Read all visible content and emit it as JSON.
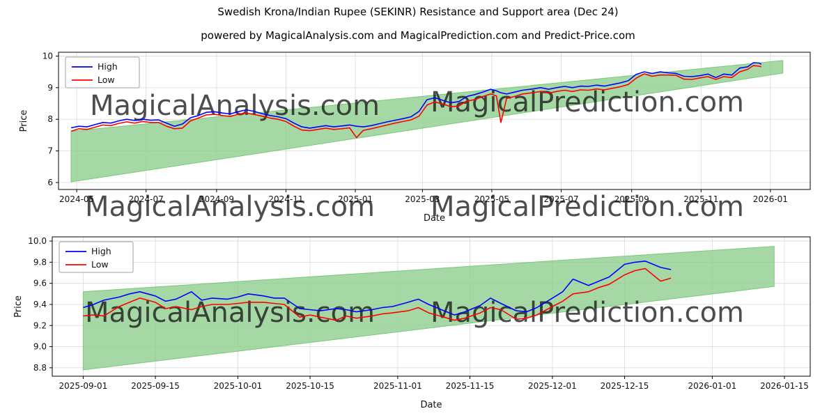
{
  "figure": {
    "title": "Swedish Krona/Indian Rupee (SEKINR) Resistance and Support area (Dec 24)",
    "subtitle": "powered by MagicalAnalysis.com and MagicalPrediction.com and Predict-Price.com"
  },
  "watermarks": [
    "MagicalAnalysis.com",
    "MagicalPrediction.com"
  ],
  "colors": {
    "high_line": "#0000ff",
    "low_line": "#ff0000",
    "band_fill": "#8fce8f",
    "band_edge": "#7ac87a",
    "grid": "#d9d9d9",
    "watermark": "#c9c9c9",
    "frame": "#000000"
  },
  "chart_data": [
    {
      "type": "line",
      "xlabel": "Date",
      "ylabel": "Price",
      "grid": true,
      "legend_position": "upper left",
      "xlim": [
        "2024-04-15",
        "2026-02-05"
      ],
      "ylim": [
        5.78,
        10.12
      ],
      "x_ticks": [
        {
          "d": "2024-05-01",
          "label": "2024-05"
        },
        {
          "d": "2024-07-01",
          "label": "2024-07"
        },
        {
          "d": "2024-09-01",
          "label": "2024-09"
        },
        {
          "d": "2024-11-01",
          "label": "2024-11"
        },
        {
          "d": "2025-01-01",
          "label": "2025-01"
        },
        {
          "d": "2025-03-01",
          "label": "2025-03"
        },
        {
          "d": "2025-05-01",
          "label": "2025-05"
        },
        {
          "d": "2025-07-01",
          "label": "2025-07"
        },
        {
          "d": "2025-09-01",
          "label": "2025-09"
        },
        {
          "d": "2025-11-01",
          "label": "2025-11"
        },
        {
          "d": "2026-01-01",
          "label": "2026-01"
        }
      ],
      "y_ticks": [
        {
          "v": 6,
          "label": "6"
        },
        {
          "v": 7,
          "label": "7"
        },
        {
          "v": 8,
          "label": "8"
        },
        {
          "v": 9,
          "label": "9"
        },
        {
          "v": 10,
          "label": "10"
        }
      ],
      "series": [
        {
          "name": "High",
          "color": "#0000ff"
        },
        {
          "name": "Low",
          "color": "#ff0000"
        }
      ],
      "band": {
        "x": [
          "2024-04-26",
          "2026-01-12"
        ],
        "lower": [
          6.02,
          9.46
        ],
        "upper": [
          7.62,
          9.86
        ]
      },
      "points": [
        [
          "2024-04-26",
          7.73,
          7.62
        ],
        [
          "2024-05-03",
          7.78,
          7.7
        ],
        [
          "2024-05-10",
          7.76,
          7.68
        ],
        [
          "2024-05-17",
          7.83,
          7.75
        ],
        [
          "2024-05-24",
          7.9,
          7.82
        ],
        [
          "2024-05-31",
          7.88,
          7.8
        ],
        [
          "2024-06-07",
          7.95,
          7.87
        ],
        [
          "2024-06-14",
          8.0,
          7.92
        ],
        [
          "2024-06-21",
          7.96,
          7.88
        ],
        [
          "2024-06-28",
          8.0,
          7.93
        ],
        [
          "2024-07-05",
          7.97,
          7.9
        ],
        [
          "2024-07-12",
          7.98,
          7.9
        ],
        [
          "2024-07-19",
          7.88,
          7.78
        ],
        [
          "2024-07-26",
          7.78,
          7.7
        ],
        [
          "2024-08-02",
          7.85,
          7.72
        ],
        [
          "2024-08-09",
          8.05,
          7.95
        ],
        [
          "2024-08-16",
          8.12,
          8.04
        ],
        [
          "2024-08-23",
          8.22,
          8.14
        ],
        [
          "2024-08-30",
          8.24,
          8.16
        ],
        [
          "2024-09-06",
          8.2,
          8.12
        ],
        [
          "2024-09-13",
          8.17,
          8.09
        ],
        [
          "2024-09-20",
          8.24,
          8.16
        ],
        [
          "2024-09-27",
          8.3,
          8.2
        ],
        [
          "2024-10-04",
          8.25,
          8.15
        ],
        [
          "2024-10-11",
          8.18,
          8.1
        ],
        [
          "2024-10-18",
          8.12,
          8.04
        ],
        [
          "2024-10-25",
          8.08,
          8.0
        ],
        [
          "2024-11-01",
          8.02,
          7.93
        ],
        [
          "2024-11-08",
          7.88,
          7.78
        ],
        [
          "2024-11-15",
          7.76,
          7.66
        ],
        [
          "2024-11-22",
          7.72,
          7.64
        ],
        [
          "2024-11-29",
          7.76,
          7.68
        ],
        [
          "2024-12-06",
          7.8,
          7.72
        ],
        [
          "2024-12-13",
          7.76,
          7.68
        ],
        [
          "2024-12-20",
          7.79,
          7.7
        ],
        [
          "2024-12-27",
          7.82,
          7.73
        ],
        [
          "2025-01-02",
          7.78,
          7.42
        ],
        [
          "2025-01-08",
          7.76,
          7.65
        ],
        [
          "2025-01-15",
          7.8,
          7.7
        ],
        [
          "2025-01-22",
          7.86,
          7.76
        ],
        [
          "2025-01-29",
          7.92,
          7.82
        ],
        [
          "2025-02-05",
          7.97,
          7.88
        ],
        [
          "2025-02-12",
          8.02,
          7.93
        ],
        [
          "2025-02-19",
          8.08,
          7.98
        ],
        [
          "2025-02-26",
          8.25,
          8.1
        ],
        [
          "2025-03-05",
          8.62,
          8.45
        ],
        [
          "2025-03-12",
          8.68,
          8.55
        ],
        [
          "2025-03-19",
          8.6,
          8.48
        ],
        [
          "2025-03-26",
          8.52,
          8.4
        ],
        [
          "2025-04-02",
          8.56,
          8.42
        ],
        [
          "2025-04-09",
          8.72,
          8.58
        ],
        [
          "2025-04-16",
          8.78,
          8.62
        ],
        [
          "2025-04-23",
          8.86,
          8.72
        ],
        [
          "2025-04-30",
          8.95,
          8.8
        ],
        [
          "2025-05-05",
          8.9,
          8.74
        ],
        [
          "2025-05-09",
          8.84,
          7.9
        ],
        [
          "2025-05-14",
          8.8,
          8.66
        ],
        [
          "2025-05-21",
          8.86,
          8.72
        ],
        [
          "2025-05-28",
          8.92,
          8.8
        ],
        [
          "2025-06-06",
          8.96,
          8.84
        ],
        [
          "2025-06-13",
          9.0,
          8.88
        ],
        [
          "2025-06-20",
          8.95,
          8.83
        ],
        [
          "2025-06-27",
          9.0,
          8.88
        ],
        [
          "2025-07-04",
          9.04,
          8.92
        ],
        [
          "2025-07-11",
          9.0,
          8.88
        ],
        [
          "2025-07-18",
          9.05,
          8.93
        ],
        [
          "2025-07-25",
          9.04,
          8.92
        ],
        [
          "2025-08-01",
          9.08,
          8.96
        ],
        [
          "2025-08-08",
          9.05,
          8.93
        ],
        [
          "2025-08-15",
          9.1,
          8.98
        ],
        [
          "2025-08-22",
          9.15,
          9.03
        ],
        [
          "2025-08-29",
          9.22,
          9.1
        ],
        [
          "2025-09-05",
          9.42,
          9.3
        ],
        [
          "2025-09-12",
          9.5,
          9.44
        ],
        [
          "2025-09-19",
          9.45,
          9.36
        ],
        [
          "2025-09-26",
          9.5,
          9.4
        ],
        [
          "2025-10-03",
          9.47,
          9.4
        ],
        [
          "2025-10-10",
          9.45,
          9.39
        ],
        [
          "2025-10-17",
          9.36,
          9.27
        ],
        [
          "2025-10-24",
          9.35,
          9.26
        ],
        [
          "2025-10-31",
          9.38,
          9.31
        ],
        [
          "2025-11-07",
          9.43,
          9.35
        ],
        [
          "2025-11-14",
          9.32,
          9.26
        ],
        [
          "2025-11-21",
          9.43,
          9.35
        ],
        [
          "2025-11-28",
          9.4,
          9.32
        ],
        [
          "2025-12-05",
          9.62,
          9.5
        ],
        [
          "2025-12-12",
          9.66,
          9.58
        ],
        [
          "2025-12-17",
          9.79,
          9.7
        ],
        [
          "2025-12-22",
          9.78,
          9.68
        ],
        [
          "2025-12-24",
          9.74,
          9.66
        ]
      ]
    },
    {
      "type": "line",
      "xlabel": "Date",
      "ylabel": "Price",
      "grid": true,
      "legend_position": "upper left",
      "xlim": [
        "2025-08-26",
        "2026-01-20"
      ],
      "ylim": [
        8.72,
        10.04
      ],
      "x_ticks": [
        {
          "d": "2025-09-01",
          "label": "2025-09-01"
        },
        {
          "d": "2025-09-15",
          "label": "2025-09-15"
        },
        {
          "d": "2025-10-01",
          "label": "2025-10-01"
        },
        {
          "d": "2025-10-15",
          "label": "2025-10-15"
        },
        {
          "d": "2025-11-01",
          "label": "2025-11-01"
        },
        {
          "d": "2025-11-15",
          "label": "2025-11-15"
        },
        {
          "d": "2025-12-01",
          "label": "2025-12-01"
        },
        {
          "d": "2025-12-15",
          "label": "2025-12-15"
        },
        {
          "d": "2026-01-01",
          "label": "2026-01-01"
        },
        {
          "d": "2026-01-15",
          "label": "2026-01-15"
        }
      ],
      "y_ticks": [
        {
          "v": 8.8,
          "label": "8.8"
        },
        {
          "v": 9.0,
          "label": "9.0"
        },
        {
          "v": 9.2,
          "label": "9.2"
        },
        {
          "v": 9.4,
          "label": "9.4"
        },
        {
          "v": 9.6,
          "label": "9.6"
        },
        {
          "v": 9.8,
          "label": "9.8"
        },
        {
          "v": 10.0,
          "label": "10.0"
        }
      ],
      "series": [
        {
          "name": "High",
          "color": "#0000ff"
        },
        {
          "name": "Low",
          "color": "#ff0000"
        }
      ],
      "band": {
        "x": [
          "2025-09-01",
          "2026-01-13"
        ],
        "lower": [
          8.78,
          9.57
        ],
        "upper": [
          9.52,
          9.95
        ]
      },
      "points": [
        [
          "2025-09-01",
          9.37,
          9.29
        ],
        [
          "2025-09-03",
          9.4,
          9.3
        ],
        [
          "2025-09-05",
          9.44,
          9.29
        ],
        [
          "2025-09-08",
          9.47,
          9.38
        ],
        [
          "2025-09-10",
          9.5,
          9.42
        ],
        [
          "2025-09-12",
          9.52,
          9.46
        ],
        [
          "2025-09-15",
          9.48,
          9.42
        ],
        [
          "2025-09-17",
          9.43,
          9.36
        ],
        [
          "2025-09-19",
          9.45,
          9.38
        ],
        [
          "2025-09-22",
          9.52,
          9.35
        ],
        [
          "2025-09-24",
          9.44,
          9.38
        ],
        [
          "2025-09-26",
          9.46,
          9.4
        ],
        [
          "2025-09-29",
          9.45,
          9.4
        ],
        [
          "2025-10-01",
          9.47,
          9.41
        ],
        [
          "2025-10-03",
          9.5,
          9.42
        ],
        [
          "2025-10-06",
          9.48,
          9.42
        ],
        [
          "2025-10-08",
          9.46,
          9.41
        ],
        [
          "2025-10-10",
          9.46,
          9.4
        ],
        [
          "2025-10-13",
          9.36,
          9.28
        ],
        [
          "2025-10-15",
          9.35,
          9.3
        ],
        [
          "2025-10-17",
          9.34,
          9.28
        ],
        [
          "2025-10-20",
          9.36,
          9.25
        ],
        [
          "2025-10-22",
          9.35,
          9.29
        ],
        [
          "2025-10-24",
          9.33,
          9.27
        ],
        [
          "2025-10-27",
          9.35,
          9.29
        ],
        [
          "2025-10-29",
          9.37,
          9.31
        ],
        [
          "2025-10-31",
          9.38,
          9.32
        ],
        [
          "2025-11-03",
          9.42,
          9.34
        ],
        [
          "2025-11-05",
          9.45,
          9.37
        ],
        [
          "2025-11-07",
          9.4,
          9.32
        ],
        [
          "2025-11-10",
          9.34,
          9.28
        ],
        [
          "2025-11-12",
          9.3,
          9.25
        ],
        [
          "2025-11-14",
          9.33,
          9.27
        ],
        [
          "2025-11-17",
          9.39,
          9.32
        ],
        [
          "2025-11-19",
          9.46,
          9.37
        ],
        [
          "2025-11-21",
          9.41,
          9.35
        ],
        [
          "2025-11-24",
          9.34,
          9.26
        ],
        [
          "2025-11-26",
          9.33,
          9.27
        ],
        [
          "2025-11-28",
          9.37,
          9.3
        ],
        [
          "2025-12-01",
          9.46,
          9.38
        ],
        [
          "2025-12-03",
          9.52,
          9.43
        ],
        [
          "2025-12-05",
          9.64,
          9.5
        ],
        [
          "2025-12-08",
          9.58,
          9.52
        ],
        [
          "2025-12-10",
          9.62,
          9.56
        ],
        [
          "2025-12-12",
          9.66,
          9.59
        ],
        [
          "2025-12-15",
          9.78,
          9.68
        ],
        [
          "2025-12-17",
          9.8,
          9.72
        ],
        [
          "2025-12-19",
          9.81,
          9.74
        ],
        [
          "2025-12-22",
          9.75,
          9.62
        ],
        [
          "2025-12-24",
          9.73,
          9.65
        ]
      ]
    }
  ]
}
